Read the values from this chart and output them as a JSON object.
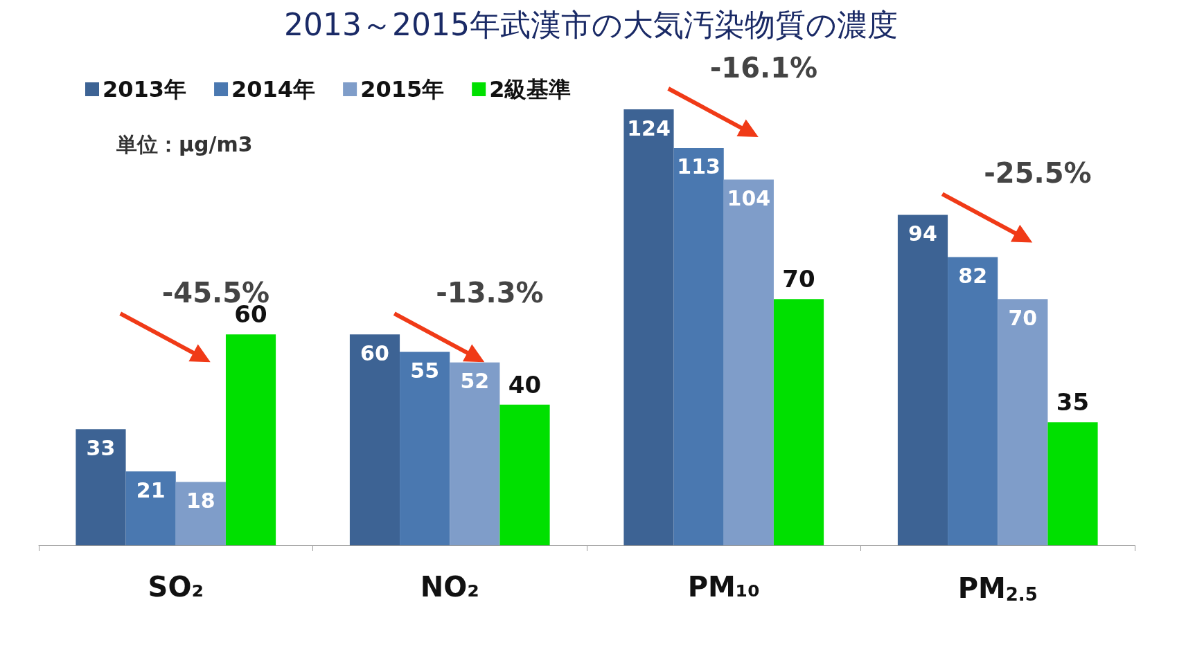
{
  "chart_data": {
    "type": "bar",
    "title": "2013～2015年武漢市の大気汚染物質の濃度",
    "categories": [
      "SO₂",
      "NO₂",
      "PM₁₀",
      "PM$_{2.5}$"
    ],
    "series": [
      {
        "name": "2013年",
        "color": "#3d6394",
        "values": [
          33,
          60,
          124,
          94
        ]
      },
      {
        "name": "2014年",
        "color": "#4a78b0",
        "values": [
          21,
          55,
          113,
          82
        ]
      },
      {
        "name": "2015年",
        "color": "#7f9dc9",
        "values": [
          18,
          52,
          104,
          70
        ]
      },
      {
        "name": "2級基準",
        "color": "#00e000",
        "values": [
          60,
          40,
          70,
          35
        ]
      }
    ],
    "data_labels": true,
    "legend": "top left",
    "grid": false,
    "annotations": [
      "単位：μg/m3",
      "-45.5%",
      "-13.3%",
      "-16.1%",
      "-25.5%"
    ]
  }
}
